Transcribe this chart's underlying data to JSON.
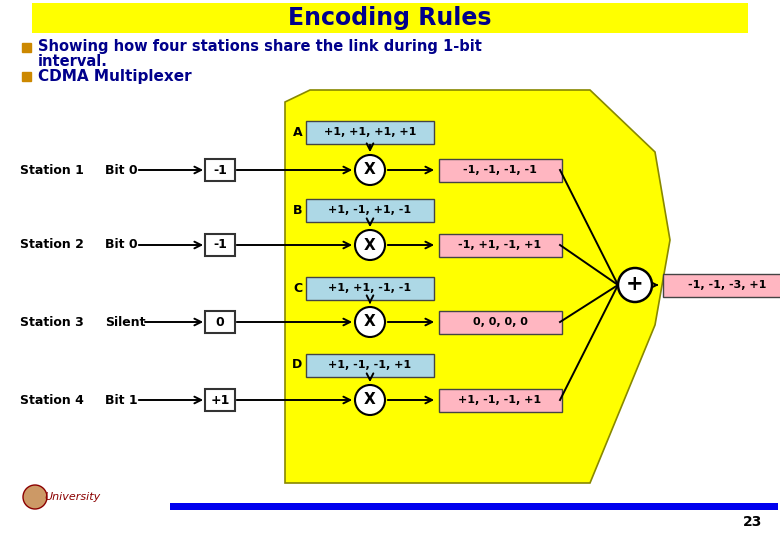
{
  "title": "Encoding Rules",
  "title_bg": "#FFFF00",
  "title_color": "#00008B",
  "bullet1_part1": "Showing how four stations share the link during 1-bit",
  "bullet1_part2": "interval.",
  "bullet2": "CDMA Multiplexer",
  "bg_color": "#FFFFFF",
  "stations": [
    "Station 1",
    "Station 2",
    "Station 3",
    "Station 4"
  ],
  "bits": [
    "Bit 0",
    "Bit 0",
    "Silent",
    "Bit 1"
  ],
  "bit_vals": [
    "-1",
    "-1",
    "0",
    "+1"
  ],
  "chip_labels": [
    "A",
    "B",
    "C",
    "D"
  ],
  "chips": [
    "+1, +1, +1, +1",
    "+1, -1, +1, -1",
    "+1, +1, -1, -1",
    "+1, -1, -1, +1"
  ],
  "outputs": [
    "-1, -1, -1, -1",
    "-1, +1, -1, +1",
    "0, 0, 0, 0",
    "+1, -1, -1, +1"
  ],
  "final_output": "-1, -1, -3, +1",
  "chip_box_color": "#ADD8E6",
  "output_box_color": "#FFB6C1",
  "yellow_bg": "#FFFF00",
  "text_color_dark": "#00008B",
  "bottom_bar_color": "#0000EE",
  "page_number": "23",
  "font_size_title": 17,
  "font_size_body": 11,
  "font_size_station": 9,
  "font_size_box": 8
}
